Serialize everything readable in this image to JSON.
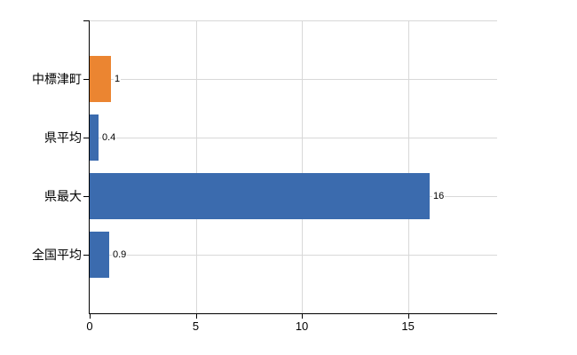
{
  "chart_data": {
    "type": "bar",
    "orientation": "horizontal",
    "title": "",
    "xlabel": "",
    "ylabel": "",
    "categories": [
      "中標津町",
      "県平均",
      "県最大",
      "全国平均"
    ],
    "values": [
      1,
      0.4,
      16,
      0.9
    ],
    "value_labels": [
      "1",
      "0.4",
      "16",
      "0.9"
    ],
    "bar_colors": [
      "#eb8531",
      "#3b6bae",
      "#3b6bae",
      "#3b6bae"
    ],
    "x_ticks": [
      0,
      5,
      10,
      15
    ],
    "x_tick_labels": [
      "0",
      "5",
      "10",
      "15"
    ],
    "xlim": [
      0,
      19.2
    ],
    "grid": true,
    "legend": false,
    "gridline_color": "#d8d8d8",
    "axis_color": "#000000",
    "background_color": "#ffffff",
    "highlight_color": "#eb8531",
    "default_bar_color": "#3b6bae"
  }
}
